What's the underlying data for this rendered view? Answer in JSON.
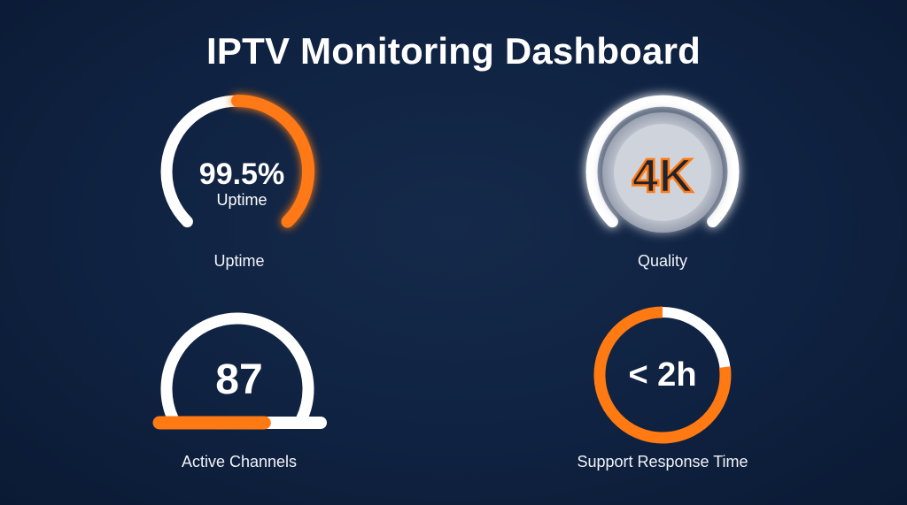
{
  "title": "IPTV Monitoring Dashboard",
  "colors": {
    "accent": "#ff7a12",
    "track": "#ffffff",
    "background": "#0f2241"
  },
  "uptime": {
    "value": "99.5%",
    "sublabel": "Uptime",
    "caption": "Uptime",
    "level": 0.5
  },
  "quality": {
    "value": "4K",
    "caption": "Quality"
  },
  "channels": {
    "value": "87",
    "caption": "Active Channels",
    "bar_fill": 0.65
  },
  "support": {
    "value": "< 2h",
    "caption": "Support Response Time",
    "ring_fill": 0.77
  }
}
